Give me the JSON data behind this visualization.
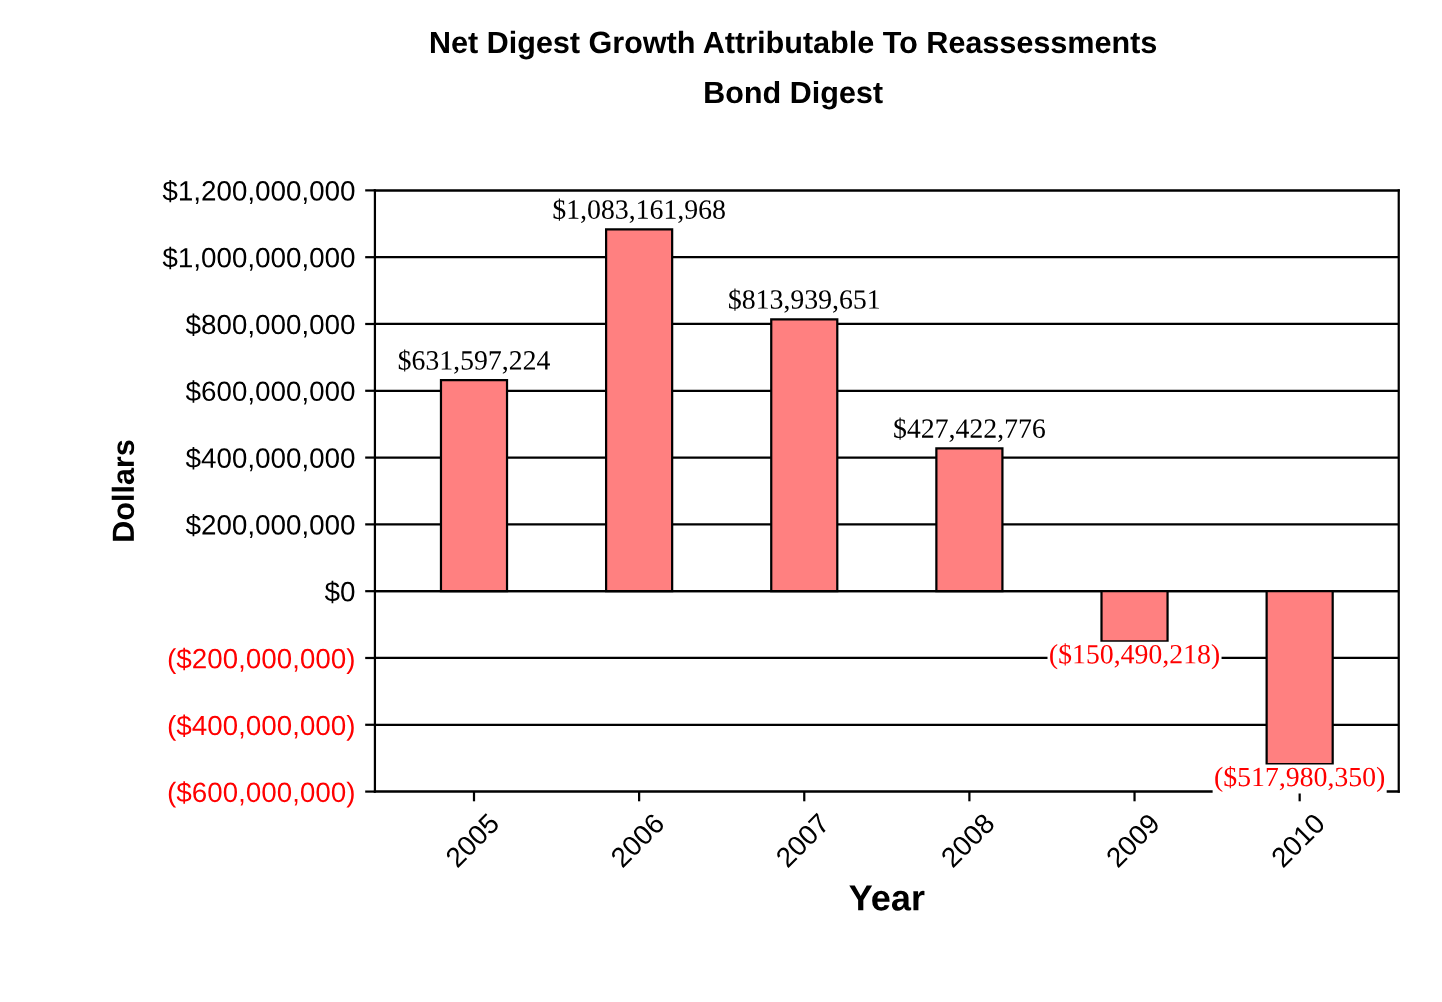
{
  "chart_data": {
    "type": "bar",
    "title": "Net Digest Growth Attributable To Reassessments",
    "subtitle": "Bond Digest",
    "xlabel": "Year",
    "ylabel": "Dollars",
    "categories": [
      "2005",
      "2006",
      "2007",
      "2008",
      "2009",
      "2010"
    ],
    "values": [
      631597224,
      1083161968,
      813939651,
      427422776,
      -150490218,
      -517980350
    ],
    "value_labels": [
      "$631,597,224",
      "$1,083,161,968",
      "$813,939,651",
      "$427,422,776",
      "($150,490,218)",
      "($517,980,350)"
    ],
    "color": "#ff8080",
    "ylim": [
      -600000000,
      1200000000
    ],
    "yticks": [
      {
        "value": -600000000,
        "label": "($600,000,000)"
      },
      {
        "value": -400000000,
        "label": "($400,000,000)"
      },
      {
        "value": -200000000,
        "label": "($200,000,000)"
      },
      {
        "value": 0,
        "label": "$0"
      },
      {
        "value": 200000000,
        "label": "$200,000,000"
      },
      {
        "value": 400000000,
        "label": "$400,000,000"
      },
      {
        "value": 600000000,
        "label": "$600,000,000"
      },
      {
        "value": 800000000,
        "label": "$800,000,000"
      },
      {
        "value": 1000000000,
        "label": "$1,000,000,000"
      },
      {
        "value": 1200000000,
        "label": "$1,200,000,000"
      }
    ],
    "grid": "y"
  }
}
